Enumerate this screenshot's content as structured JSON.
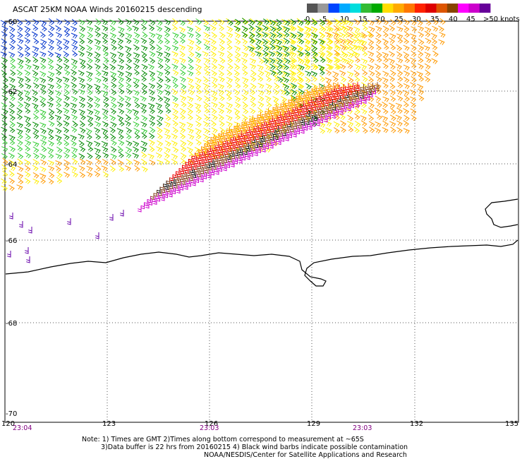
{
  "title": "ASCAT 25KM NOAA Winds 20160215 descending",
  "colorbar": {
    "colors": [
      "#555555",
      "#999999",
      "#0044ff",
      "#00aaff",
      "#00dddd",
      "#33bb33",
      "#00aa00",
      "#ffdd00",
      "#ffaa00",
      "#ff7700",
      "#ff2200",
      "#dd0000",
      "#dd5500",
      "#884400",
      "#ff00ff",
      "#cc00cc",
      "#660099"
    ],
    "labels": [
      "0",
      "5",
      "10",
      "15",
      "20",
      "25",
      "30",
      "35",
      "40",
      "45",
      ">50 knots"
    ]
  },
  "lat_labels": [
    "-60",
    "-62",
    "-64",
    "-66",
    "-68",
    "-70"
  ],
  "lon_labels": [
    "120",
    "123",
    "126",
    "129",
    "132",
    "135"
  ],
  "time_labels": [
    "23:04",
    "23:03",
    "23:03"
  ],
  "notes": [
    "Note: 1) Times are GMT 2)Times along bottom correspond to measurement at ~65S",
    "3)Data buffer is 22 hrs from 20160215 4) Black wind barbs indicate possible contamination",
    "NOAA/NESDIS/Center for Satellite Applications and Research"
  ],
  "wind_colors": {
    "blue": "#0033cc",
    "green": "#008800",
    "light_green": "#33cc33",
    "yellow": "#ffee00",
    "orange": "#ff9900",
    "red": "#ee0000",
    "brown": "#884422",
    "black": "#111111",
    "magenta": "#cc00cc",
    "purple": "#6600aa"
  }
}
